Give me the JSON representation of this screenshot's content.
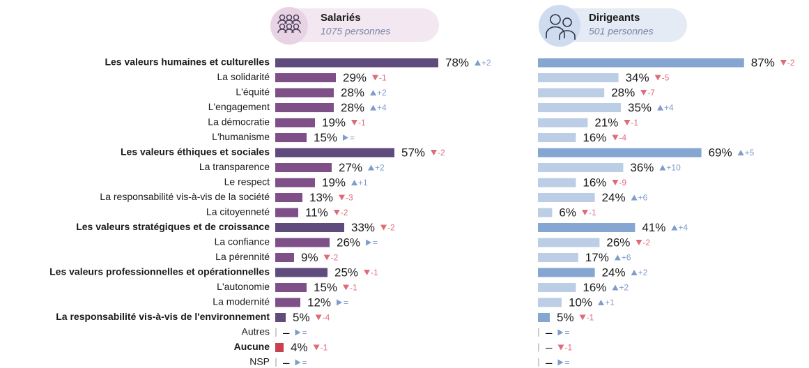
{
  "chart_data": {
    "type": "bar",
    "categories": [
      "Les valeurs humaines et culturelles",
      "La solidarité",
      "L'équité",
      "L'engagement",
      "La démocratie",
      "L'humanisme",
      "Les valeurs éthiques et sociales",
      "La transparence",
      "Le respect",
      "La responsabilité vis-à-vis de la société",
      "La citoyenneté",
      "Les valeurs stratégiques et de croissance",
      "La confiance",
      "La pérennité",
      "Les valeurs professionnelles et opérationnelles",
      "L'autonomie",
      "La modernité",
      "La responsabilité vis-à-vis de l'environnement",
      "Autres",
      "Aucune",
      "NSP"
    ],
    "bold": [
      true,
      false,
      false,
      false,
      false,
      false,
      true,
      false,
      false,
      false,
      false,
      true,
      false,
      false,
      true,
      false,
      false,
      true,
      false,
      true,
      false
    ],
    "series": [
      {
        "name": "Salariés",
        "subtitle": "1075 personnes",
        "values": [
          78,
          29,
          28,
          28,
          19,
          15,
          57,
          27,
          19,
          13,
          11,
          33,
          26,
          9,
          25,
          15,
          12,
          5,
          null,
          4,
          null
        ],
        "value_labels": [
          "78%",
          "29%",
          "28%",
          "28%",
          "19%",
          "15%",
          "57%",
          "27%",
          "19%",
          "13%",
          "11%",
          "33%",
          "26%",
          "9%",
          "25%",
          "15%",
          "12%",
          "5%",
          "–",
          "4%",
          "–"
        ],
        "changes": [
          "+2",
          "-1",
          "+2",
          "+4",
          "-1",
          "=",
          "-2",
          "+2",
          "+1",
          "-3",
          "-2",
          "-2",
          "=",
          "-2",
          "-1",
          "-1",
          "=",
          "-4",
          "=",
          "-1",
          "="
        ],
        "colors": [
          "#5f4b7c",
          "#7f4f88",
          "#7f4f88",
          "#7f4f88",
          "#7f4f88",
          "#7f4f88",
          "#5f4b7c",
          "#7f4f88",
          "#7f4f88",
          "#7f4f88",
          "#7f4f88",
          "#5f4b7c",
          "#7f4f88",
          "#7f4f88",
          "#5f4b7c",
          "#7f4f88",
          "#7f4f88",
          "#5f4b7c",
          "#7f4f88",
          "#c8414f",
          "#7f4f88"
        ]
      },
      {
        "name": "Dirigeants",
        "subtitle": "501 personnes",
        "values": [
          87,
          34,
          28,
          35,
          21,
          16,
          69,
          36,
          16,
          24,
          6,
          41,
          26,
          17,
          24,
          16,
          10,
          5,
          null,
          null,
          null
        ],
        "value_labels": [
          "87%",
          "34%",
          "28%",
          "35%",
          "21%",
          "16%",
          "69%",
          "36%",
          "16%",
          "24%",
          "6%",
          "41%",
          "26%",
          "17%",
          "24%",
          "16%",
          "10%",
          "5%",
          "–",
          "–",
          "–"
        ],
        "changes": [
          "-2",
          "-5",
          "-7",
          "+4",
          "-1",
          "-4",
          "+5",
          "+10",
          "-9",
          "+6",
          "-1",
          "+4",
          "-2",
          "+6",
          "+2",
          "+2",
          "+1",
          "-1",
          "=",
          "-1",
          "="
        ],
        "colors": [
          "#86a6d2",
          "#bccde6",
          "#bccde6",
          "#bccde6",
          "#bccde6",
          "#bccde6",
          "#86a6d2",
          "#bccde6",
          "#bccde6",
          "#bccde6",
          "#bccde6",
          "#86a6d2",
          "#bccde6",
          "#bccde6",
          "#86a6d2",
          "#bccde6",
          "#bccde6",
          "#86a6d2",
          "#bccde6",
          "#bccde6",
          "#bccde6"
        ]
      }
    ]
  }
}
